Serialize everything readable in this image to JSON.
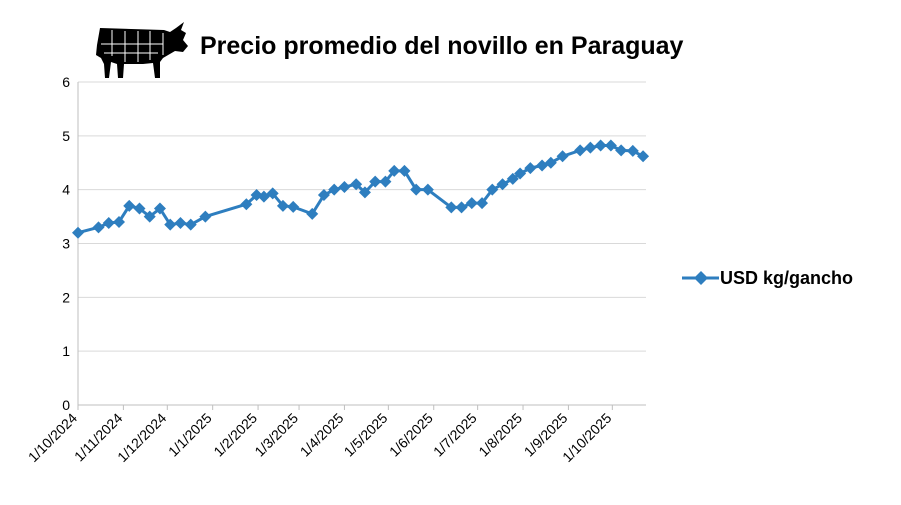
{
  "chart_data": {
    "type": "line",
    "title": "Precio promedio del novillo en Paraguay",
    "ylim": [
      0,
      6
    ],
    "yticks": [
      "0",
      "1",
      "2",
      "3",
      "4",
      "5",
      "6"
    ],
    "xlim": [
      "2024-10-01",
      "2025-10-24"
    ],
    "xticks": [
      {
        "date": "2024-10-01",
        "label": "1/10/2024"
      },
      {
        "date": "2024-11-01",
        "label": "1/11/2024"
      },
      {
        "date": "2024-12-01",
        "label": "1/12/2024"
      },
      {
        "date": "2025-01-01",
        "label": "1/1/2025"
      },
      {
        "date": "2025-02-01",
        "label": "1/2/2025"
      },
      {
        "date": "2025-03-01",
        "label": "1/3/2025"
      },
      {
        "date": "2025-04-01",
        "label": "1/4/2025"
      },
      {
        "date": "2025-05-01",
        "label": "1/5/2025"
      },
      {
        "date": "2025-06-01",
        "label": "1/6/2025"
      },
      {
        "date": "2025-07-01",
        "label": "1/7/2025"
      },
      {
        "date": "2025-08-01",
        "label": "1/8/2025"
      },
      {
        "date": "2025-09-01",
        "label": "1/9/2025"
      },
      {
        "date": "2025-10-01",
        "label": "1/10/2025"
      }
    ],
    "grid": "horizontal",
    "legend_position": "right",
    "series": [
      {
        "name": "USD kg/gancho",
        "color": "#2e7ebf",
        "marker": "diamond",
        "points": [
          [
            "2024-10-01",
            3.2
          ],
          [
            "2024-10-15",
            3.3
          ],
          [
            "2024-10-22",
            3.38
          ],
          [
            "2024-10-29",
            3.4
          ],
          [
            "2024-11-05",
            3.7
          ],
          [
            "2024-11-12",
            3.65
          ],
          [
            "2024-11-19",
            3.5
          ],
          [
            "2024-11-26",
            3.65
          ],
          [
            "2024-12-03",
            3.35
          ],
          [
            "2024-12-10",
            3.38
          ],
          [
            "2024-12-17",
            3.35
          ],
          [
            "2024-12-27",
            3.5
          ],
          [
            "2025-01-24",
            3.73
          ],
          [
            "2025-01-31",
            3.9
          ],
          [
            "2025-02-05",
            3.87
          ],
          [
            "2025-02-11",
            3.93
          ],
          [
            "2025-02-18",
            3.7
          ],
          [
            "2025-02-25",
            3.68
          ],
          [
            "2025-03-10",
            3.55
          ],
          [
            "2025-03-18",
            3.9
          ],
          [
            "2025-03-25",
            4.0
          ],
          [
            "2025-04-01",
            4.05
          ],
          [
            "2025-04-09",
            4.1
          ],
          [
            "2025-04-15",
            3.95
          ],
          [
            "2025-04-22",
            4.15
          ],
          [
            "2025-04-29",
            4.15
          ],
          [
            "2025-05-05",
            4.35
          ],
          [
            "2025-05-12",
            4.35
          ],
          [
            "2025-05-20",
            4.0
          ],
          [
            "2025-05-28",
            4.0
          ],
          [
            "2025-06-13",
            3.67
          ],
          [
            "2025-06-20",
            3.67
          ],
          [
            "2025-06-27",
            3.75
          ],
          [
            "2025-07-04",
            3.75
          ],
          [
            "2025-07-11",
            4.0
          ],
          [
            "2025-07-18",
            4.1
          ],
          [
            "2025-07-25",
            4.2
          ],
          [
            "2025-07-30",
            4.3
          ],
          [
            "2025-08-06",
            4.4
          ],
          [
            "2025-08-14",
            4.45
          ],
          [
            "2025-08-20",
            4.5
          ],
          [
            "2025-08-28",
            4.62
          ],
          [
            "2025-09-09",
            4.73
          ],
          [
            "2025-09-16",
            4.78
          ],
          [
            "2025-09-23",
            4.82
          ],
          [
            "2025-09-30",
            4.82
          ],
          [
            "2025-10-07",
            4.73
          ],
          [
            "2025-10-15",
            4.72
          ],
          [
            "2025-10-22",
            4.62
          ]
        ]
      }
    ]
  },
  "decoration": {
    "logo": "cow-beef-cuts-icon",
    "logo_color": "#000000"
  }
}
